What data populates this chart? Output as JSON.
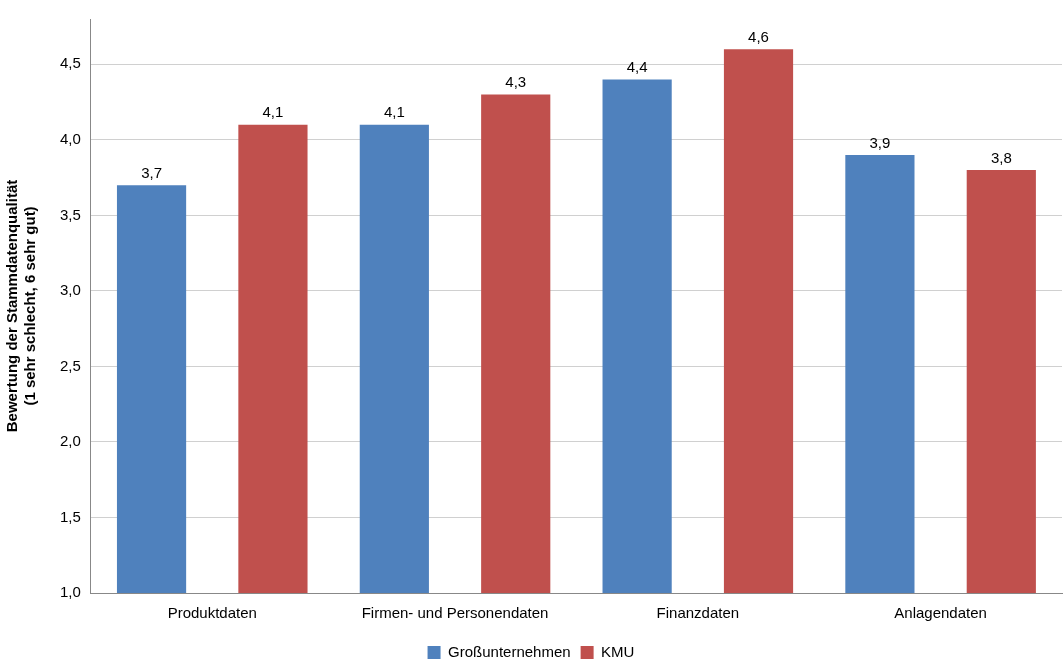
{
  "chart_data": {
    "type": "bar",
    "ylabel": "Bewertung der Stammdatenqualität\n(1 sehr schlecht, 6 sehr gut)",
    "categories": [
      "Produktdaten",
      "Firmen- und Personendaten",
      "Finanzdaten",
      "Anlagendaten"
    ],
    "series": [
      {
        "name": "Großunternehmen",
        "color": "#4f81bd",
        "values": [
          3.7,
          4.1,
          4.4,
          3.9
        ],
        "value_labels": [
          "3,7",
          "4,1",
          "4,4",
          "3,9"
        ]
      },
      {
        "name": "KMU",
        "color": "#c0504d",
        "values": [
          4.1,
          4.3,
          4.6,
          3.8
        ],
        "value_labels": [
          "4,1",
          "4,3",
          "4,6",
          "3,8"
        ]
      }
    ],
    "ylim": [
      1,
      4.8
    ],
    "yticks": [
      {
        "value": 1,
        "label": "1,0"
      },
      {
        "value": 1.5,
        "label": "1,5"
      },
      {
        "value": 2,
        "label": "2,0"
      },
      {
        "value": 2.5,
        "label": "2,5"
      },
      {
        "value": 3,
        "label": "3,0"
      },
      {
        "value": 3.5,
        "label": "3,5"
      },
      {
        "value": 4,
        "label": "4,0"
      },
      {
        "value": 4.5,
        "label": "4,5"
      }
    ],
    "grid": "y",
    "legend": "bottom"
  }
}
